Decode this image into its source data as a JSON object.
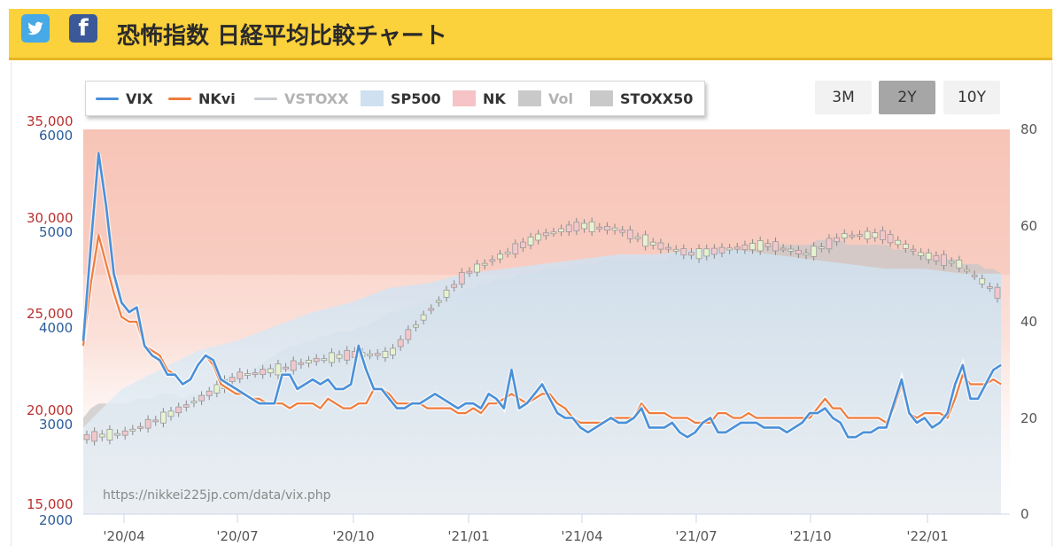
{
  "header": {
    "title": "恐怖指数 日経平均比較チャート",
    "twitter_icon": "twitter-bird-icon",
    "facebook_icon": "facebook-f-icon",
    "facebook_glyph": "f"
  },
  "legend": [
    {
      "label": "VIX",
      "kind": "line",
      "color": "#4a90d9",
      "active": true
    },
    {
      "label": "NKvi",
      "kind": "line",
      "color": "#f07c3c",
      "active": true
    },
    {
      "label": "VSTOXX",
      "kind": "line",
      "color": "#c9ccd1",
      "active": false
    },
    {
      "label": "SP500",
      "kind": "area",
      "color": "#cfe1f0",
      "active": true
    },
    {
      "label": "NK",
      "kind": "area",
      "color": "#f6c3c6",
      "active": true
    },
    {
      "label": "Vol",
      "kind": "area",
      "color": "#c9c9c9",
      "active": false
    },
    {
      "label": "STOXX50",
      "kind": "area",
      "color": "#c9c9c9",
      "active": true
    }
  ],
  "range_buttons": [
    {
      "label": "3M",
      "active": false
    },
    {
      "label": "2Y",
      "active": true
    },
    {
      "label": "10Y",
      "active": false
    }
  ],
  "watermark": "https://nikkei225jp.com/data/vix.php",
  "chart_data": {
    "type": "line",
    "axes": {
      "left_nk": {
        "ticks": [
          "35,000",
          "30,000",
          "25,000",
          "20,000",
          "15,000"
        ],
        "range": [
          15000,
          35000
        ],
        "color": "#b8312f"
      },
      "left_sp500": {
        "ticks": [
          "6000",
          "5000",
          "4000",
          "3000",
          "2000"
        ],
        "range": [
          2000,
          6000
        ],
        "color": "#2b5c9a"
      },
      "right_vix": {
        "ticks": [
          "80",
          "60",
          "40",
          "20",
          "0"
        ],
        "range": [
          0,
          80
        ]
      }
    },
    "x_ticks": [
      "'20/04",
      "'20/07",
      "'20/10",
      "'21/01",
      "'21/04",
      "'21/07",
      "'21/10",
      "'22/01"
    ],
    "x_range": [
      "2020-03",
      "2022-03"
    ],
    "series": [
      {
        "name": "VIX",
        "color": "#4a90d9",
        "axis": "right_vix",
        "values": [
          36,
          56,
          75,
          64,
          50,
          44,
          42,
          43,
          35,
          33,
          32,
          29,
          29,
          27,
          28,
          31,
          33,
          32,
          28,
          27,
          26,
          25,
          24,
          23,
          23,
          23,
          29,
          29,
          26,
          27,
          28,
          27,
          28,
          26,
          26,
          27,
          35,
          30,
          26,
          26,
          24,
          22,
          22,
          23,
          23,
          24,
          25,
          24,
          23,
          22,
          23,
          23,
          22,
          25,
          24,
          22,
          30,
          22,
          23,
          25,
          27,
          24,
          21,
          20,
          20,
          18,
          17,
          18,
          19,
          20,
          19,
          19,
          20,
          22,
          18,
          18,
          18,
          19,
          17,
          16,
          17,
          19,
          20,
          17,
          17,
          18,
          19,
          19,
          19,
          18,
          18,
          18,
          17,
          18,
          19,
          21,
          21,
          22,
          20,
          19,
          16,
          16,
          17,
          17,
          18,
          18,
          23,
          28,
          21,
          19,
          20,
          18,
          19,
          21,
          27,
          31,
          24,
          24,
          27,
          30,
          31
        ]
      },
      {
        "name": "NKvi",
        "color": "#f07c3c",
        "axis": "right_vix",
        "values": [
          35,
          48,
          58,
          52,
          46,
          41,
          40,
          40,
          35,
          34,
          33,
          30,
          29,
          27,
          28,
          31,
          33,
          31,
          27,
          26,
          25,
          25,
          24,
          24,
          23,
          23,
          23,
          22,
          23,
          23,
          23,
          22,
          24,
          23,
          22,
          22,
          23,
          23,
          26,
          26,
          25,
          23,
          23,
          23,
          23,
          22,
          22,
          22,
          22,
          21,
          21,
          22,
          21,
          23,
          23,
          24,
          25,
          24,
          23,
          24,
          25,
          25,
          23,
          22,
          20,
          19,
          19,
          19,
          19,
          20,
          20,
          20,
          20,
          23,
          21,
          21,
          21,
          20,
          20,
          20,
          19,
          19,
          19,
          21,
          21,
          20,
          20,
          21,
          20,
          20,
          20,
          20,
          20,
          20,
          20,
          20,
          22,
          24,
          22,
          22,
          20,
          20,
          20,
          20,
          20,
          19,
          22,
          27,
          21,
          20,
          21,
          21,
          21,
          20,
          24,
          29,
          27,
          27,
          27,
          28,
          27
        ]
      },
      {
        "name": "STOXX50",
        "color": "#c9c9c9",
        "axis": "hidden",
        "values": [
          20,
          22,
          23,
          23,
          23,
          23,
          23,
          24,
          24,
          24,
          25,
          25,
          25,
          24,
          25,
          25,
          25,
          26,
          26,
          27,
          28,
          29,
          30,
          31,
          32,
          33,
          34,
          35,
          35,
          36,
          36,
          37,
          37,
          38,
          38,
          38,
          39,
          39,
          40,
          41,
          42,
          42,
          43,
          43,
          44,
          44,
          45,
          45,
          46,
          46,
          47,
          47,
          48,
          48,
          49,
          49,
          49,
          50,
          50,
          50,
          51,
          51,
          51,
          51,
          52,
          52,
          52,
          52,
          53,
          53,
          53,
          53,
          53,
          53,
          53,
          53,
          53,
          54,
          54,
          54,
          54,
          55,
          55,
          55,
          55,
          55,
          55,
          55,
          55,
          56,
          56,
          56,
          56,
          56,
          56,
          56,
          57,
          57,
          57,
          57,
          56,
          56,
          56,
          56,
          56,
          56,
          55,
          55,
          55,
          54,
          54,
          53,
          53,
          53,
          53,
          52,
          52,
          52,
          51,
          51,
          50
        ]
      },
      {
        "name": "SP500",
        "axis": "left_sp500",
        "values": [
          2900,
          3300,
          3500,
          3700,
          3800,
          3950,
          4100,
          4200,
          4350,
          4400,
          4500,
          4550,
          4600,
          4650,
          4700,
          4700,
          4750,
          4750,
          4700,
          4650,
          4600,
          4550,
          4550,
          4500,
          4500
        ]
      },
      {
        "name": "NK",
        "axis": "left_nk",
        "values": [
          19000,
          19200,
          20000,
          21000,
          22200,
          22500,
          23000,
          23300,
          23300,
          25500,
          27500,
          28500,
          29500,
          30000,
          29800,
          29000,
          28500,
          28800,
          29000,
          28500,
          29500,
          29500,
          28500,
          28000,
          26500
        ]
      }
    ]
  }
}
